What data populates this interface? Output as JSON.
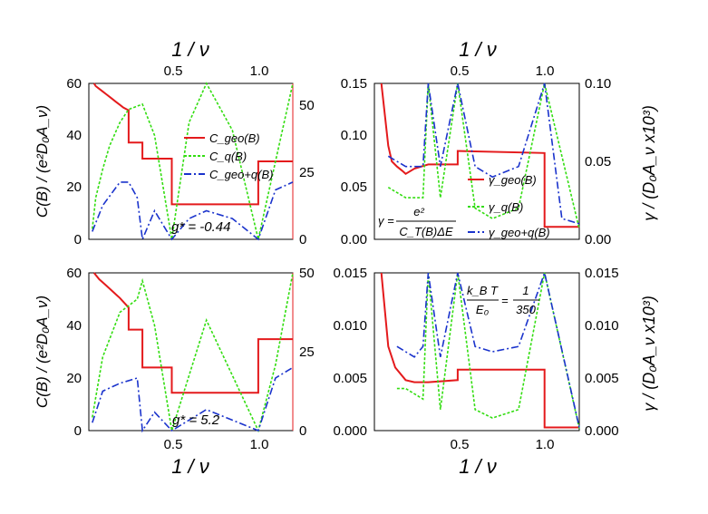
{
  "chart_data": [
    {
      "type": "line",
      "panel": "top-left",
      "top_axis_label": "1 / ν",
      "top_ticks": [
        "0.5",
        "1.0"
      ],
      "ylabel": "C(B) / (e²D₀A_ν)",
      "ylim": [
        0,
        60
      ],
      "yticks": [
        "0",
        "20",
        "40",
        "60"
      ],
      "xlim": [
        0.02,
        1.2
      ],
      "right_ylim": [
        0,
        58
      ],
      "right_ticks": [
        "0",
        "25",
        "50"
      ],
      "annotation": "g* = -0.44",
      "legend": [
        "C_geo(B)",
        "C_q(B)",
        "C_geo+q(B)"
      ],
      "colors": {
        "geo": "#e41a1c",
        "q": "#33dd11",
        "geoq": "#1a33cc"
      },
      "series": [
        {
          "name": "C_geo(B)",
          "axis": "right",
          "x": [
            0.05,
            0.06,
            0.08,
            0.1,
            0.12,
            0.14,
            0.16,
            0.18,
            0.2,
            0.22,
            0.25,
            0.25,
            0.33,
            0.33,
            0.5,
            0.5,
            1.0,
            1.0,
            1.2
          ],
          "y": [
            58,
            57,
            56,
            55,
            54,
            53,
            52,
            51,
            50,
            49,
            48,
            36,
            36,
            30,
            30,
            13,
            13,
            29,
            29
          ]
        },
        {
          "name": "C_q(B) envelope",
          "x": [
            0.04,
            0.06,
            0.1,
            0.14,
            0.2,
            0.25,
            0.33,
            0.4,
            0.5,
            0.6,
            0.7,
            0.85,
            1.0,
            1.1,
            1.2
          ],
          "y": [
            4,
            16,
            27,
            36,
            45,
            50,
            52,
            40,
            0,
            45,
            60,
            42,
            0,
            30,
            60
          ]
        },
        {
          "name": "C_geo+q(B) envelope",
          "x": [
            0.04,
            0.1,
            0.2,
            0.25,
            0.3,
            0.33,
            0.4,
            0.5,
            0.6,
            0.7,
            0.85,
            1.0,
            1.1,
            1.2
          ],
          "y": [
            3,
            13,
            22,
            22,
            16,
            0,
            11,
            0,
            8,
            11,
            8,
            0,
            19,
            22
          ]
        }
      ]
    },
    {
      "type": "line",
      "panel": "top-right",
      "top_axis_label": "1 / ν",
      "top_ticks": [
        "0.5",
        "1.0"
      ],
      "ylim": [
        0,
        0.15
      ],
      "yticks": [
        "0.00",
        "0.05",
        "0.10",
        "0.15"
      ],
      "xlim": [
        0.02,
        1.2
      ],
      "right_axis_label": "γ / (D₀A_ν x10³)",
      "right_ylim": [
        0,
        0.1
      ],
      "right_ticks": [
        "0.00",
        "0.05",
        "0.10"
      ],
      "formula": {
        "lhs": "γ =",
        "num": "e²",
        "den": "C_T(B)ΔE"
      },
      "legend": [
        "γ_geo(B)",
        "γ_q(B)",
        "γ_geo+q(B)"
      ],
      "series": [
        {
          "name": "γ_geo(B)",
          "x": [
            0.06,
            0.1,
            0.12,
            0.15,
            0.18,
            0.2,
            0.25,
            0.33,
            0.5,
            0.5,
            1.0,
            1.0,
            1.2
          ],
          "y": [
            0.15,
            0.09,
            0.075,
            0.07,
            0.066,
            0.063,
            0.068,
            0.072,
            0.072,
            0.085,
            0.083,
            0.012,
            0.012
          ]
        },
        {
          "name": "γ_q(B) envelope",
          "x": [
            0.1,
            0.2,
            0.3,
            0.33,
            0.4,
            0.5,
            0.6,
            0.7,
            0.85,
            1.0,
            1.2
          ],
          "y": [
            0.05,
            0.04,
            0.04,
            0.15,
            0.04,
            0.15,
            0.03,
            0.02,
            0.03,
            0.15,
            0.01
          ]
        },
        {
          "name": "γ_geo+q(B) envelope",
          "x": [
            0.1,
            0.2,
            0.3,
            0.33,
            0.4,
            0.5,
            0.6,
            0.7,
            0.85,
            1.0,
            1.1,
            1.2
          ],
          "y": [
            0.08,
            0.07,
            0.07,
            0.15,
            0.07,
            0.15,
            0.07,
            0.06,
            0.07,
            0.15,
            0.02,
            0.015
          ]
        }
      ]
    },
    {
      "type": "line",
      "panel": "bottom-left",
      "xlabel": "1 / ν",
      "xticks": [
        "0.5",
        "1.0"
      ],
      "ylabel": "C(B) / (e²D₀A_ν)",
      "ylim": [
        0,
        60
      ],
      "yticks": [
        "0",
        "20",
        "40",
        "60"
      ],
      "xlim": [
        0.02,
        1.2
      ],
      "right_ylim": [
        0,
        50
      ],
      "right_ticks": [
        "0",
        "25",
        "50"
      ],
      "annotation": "g* = 5.2",
      "series": [
        {
          "name": "C_geo(B)",
          "axis": "right",
          "x": [
            0.05,
            0.08,
            0.12,
            0.16,
            0.2,
            0.25,
            0.25,
            0.33,
            0.33,
            0.5,
            0.5,
            1.0,
            1.0,
            1.2
          ],
          "y": [
            50,
            48,
            46,
            44,
            42,
            39,
            32,
            32,
            20,
            20,
            12,
            12,
            29,
            29
          ]
        },
        {
          "name": "C_q(B) envelope",
          "x": [
            0.04,
            0.1,
            0.2,
            0.3,
            0.33,
            0.4,
            0.5,
            0.7,
            1.0,
            1.1,
            1.2
          ],
          "y": [
            5,
            28,
            45,
            50,
            57,
            40,
            0,
            42,
            0,
            25,
            60
          ]
        },
        {
          "name": "C_geo+q(B) envelope",
          "x": [
            0.04,
            0.1,
            0.2,
            0.3,
            0.33,
            0.4,
            0.5,
            0.7,
            1.0,
            1.1,
            1.2
          ],
          "y": [
            3,
            15,
            18,
            20,
            0,
            7,
            0,
            8,
            0,
            20,
            24
          ]
        }
      ]
    },
    {
      "type": "line",
      "panel": "bottom-right",
      "xlabel": "1 / ν",
      "xticks": [
        "0.5",
        "1.0"
      ],
      "ylim": [
        0,
        0.015
      ],
      "yticks": [
        "0.000",
        "0.005",
        "0.010",
        "0.015"
      ],
      "xlim": [
        0.02,
        1.2
      ],
      "right_axis_label": "γ / (D₀A_ν x10³)",
      "right_ylim": [
        0,
        0.015
      ],
      "right_ticks": [
        "0.000",
        "0.005",
        "0.010",
        "0.015"
      ],
      "formula": {
        "lhs": "k_B T",
        "den": "E₀",
        "rhs_num": "1",
        "rhs_den": "350"
      },
      "series": [
        {
          "name": "γ_geo(B)",
          "x": [
            0.06,
            0.1,
            0.14,
            0.2,
            0.25,
            0.33,
            0.5,
            0.5,
            1.0,
            1.0,
            1.2
          ],
          "y": [
            0.015,
            0.008,
            0.006,
            0.0048,
            0.0046,
            0.0046,
            0.0048,
            0.0058,
            0.0058,
            0.0003,
            0.0003
          ]
        },
        {
          "name": "γ_q(B) envelope",
          "x": [
            0.15,
            0.2,
            0.3,
            0.33,
            0.4,
            0.5,
            0.6,
            0.7,
            0.85,
            1.0,
            1.2
          ],
          "y": [
            0.004,
            0.004,
            0.003,
            0.015,
            0.002,
            0.015,
            0.002,
            0.0012,
            0.002,
            0.015,
            0.0002
          ]
        },
        {
          "name": "γ_geo+q(B) envelope",
          "x": [
            0.15,
            0.25,
            0.3,
            0.33,
            0.4,
            0.5,
            0.6,
            0.7,
            0.85,
            1.0,
            1.2
          ],
          "y": [
            0.008,
            0.007,
            0.008,
            0.015,
            0.007,
            0.015,
            0.008,
            0.0075,
            0.008,
            0.015,
            0.0003
          ]
        }
      ]
    }
  ]
}
